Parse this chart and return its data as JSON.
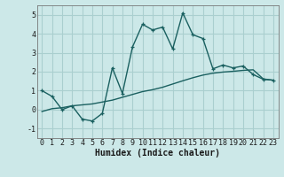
{
  "xlabel": "Humidex (Indice chaleur)",
  "bg_color": "#cce8e8",
  "grid_color": "#aacfcf",
  "line_color": "#1a6060",
  "x_main": [
    0,
    1,
    2,
    3,
    4,
    5,
    6,
    7,
    8,
    9,
    10,
    11,
    12,
    13,
    14,
    15,
    16,
    17,
    18,
    19,
    20,
    21,
    22,
    23
  ],
  "y_main": [
    1.0,
    0.7,
    0.0,
    0.2,
    -0.5,
    -0.6,
    -0.2,
    2.2,
    0.85,
    3.3,
    4.5,
    4.2,
    4.35,
    3.2,
    5.1,
    3.95,
    3.75,
    2.15,
    2.35,
    2.2,
    2.3,
    1.85,
    1.6,
    1.55
  ],
  "x_smooth": [
    0,
    1,
    2,
    3,
    4,
    5,
    6,
    7,
    8,
    9,
    10,
    11,
    12,
    13,
    14,
    15,
    16,
    17,
    18,
    19,
    20,
    21,
    22,
    23
  ],
  "y_smooth": [
    -0.1,
    0.05,
    0.1,
    0.2,
    0.25,
    0.3,
    0.4,
    0.5,
    0.65,
    0.8,
    0.95,
    1.05,
    1.18,
    1.35,
    1.52,
    1.68,
    1.82,
    1.92,
    1.98,
    2.02,
    2.07,
    2.1,
    1.62,
    1.55
  ],
  "ylim": [
    -1.5,
    5.5
  ],
  "yticks": [
    -1,
    0,
    1,
    2,
    3,
    4,
    5
  ],
  "xlim": [
    -0.5,
    23.5
  ],
  "xticks": [
    0,
    1,
    2,
    3,
    4,
    5,
    6,
    7,
    8,
    9,
    10,
    11,
    12,
    13,
    14,
    15,
    16,
    17,
    18,
    19,
    20,
    21,
    22,
    23
  ],
  "xlabel_fontsize": 7,
  "tick_fontsize": 6
}
